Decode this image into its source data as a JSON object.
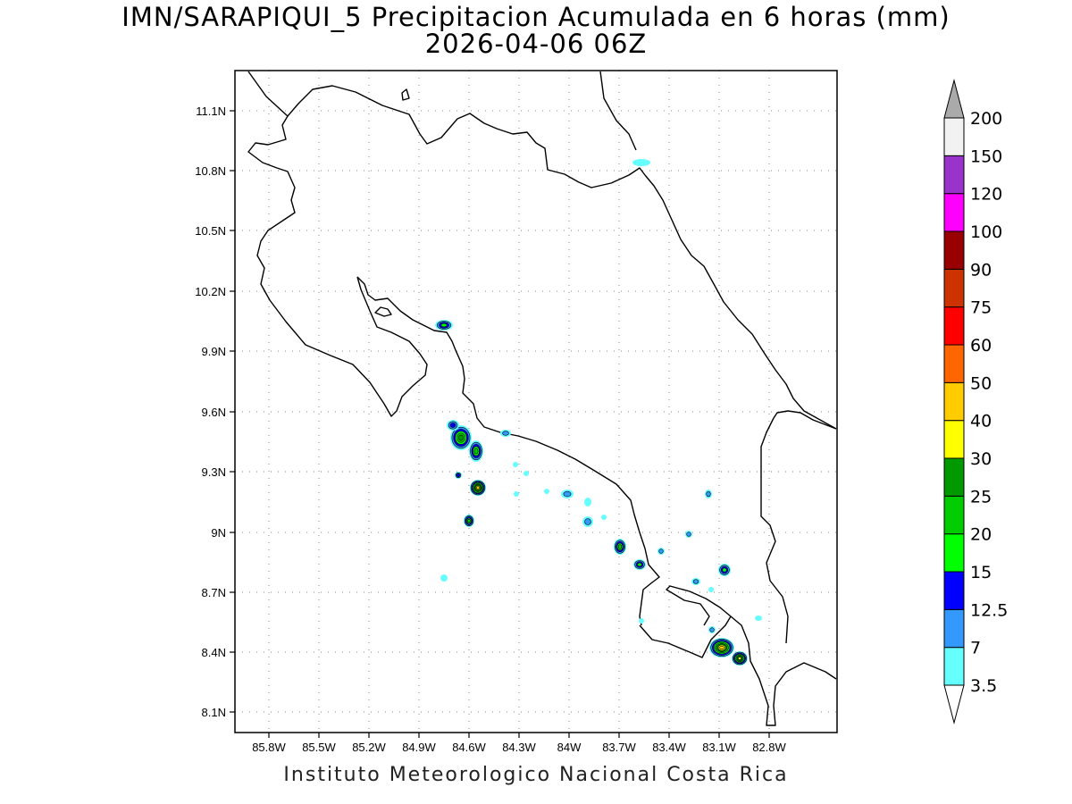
{
  "header": {
    "title": "IMN/SARAPIQUI_5 Precipitacion Acumulada en 6 horas (mm)",
    "subtitle": "2026-04-06 06Z"
  },
  "footer": {
    "credit": "Instituto Meteorologico Nacional Costa Rica"
  },
  "map": {
    "lat_labels": [
      "11.1N",
      "10.8N",
      "10.5N",
      "10.2N",
      "9.9N",
      "9.6N",
      "9.3N",
      "9N",
      "8.7N",
      "8.4N",
      "8.1N"
    ],
    "lon_labels": [
      "85.8W",
      "85.5W",
      "85.2W",
      "84.9W",
      "84.6W",
      "84.3W",
      "84W",
      "83.7W",
      "83.4W",
      "83.1W",
      "82.8W"
    ],
    "grid": "dotted"
  },
  "colorbar": {
    "labels": [
      "3.5",
      "7",
      "12.5",
      "15",
      "20",
      "25",
      "30",
      "40",
      "50",
      "60",
      "75",
      "90",
      "100",
      "120",
      "150",
      "200"
    ],
    "colors": [
      "#66ffff",
      "#3399ff",
      "#0000ff",
      "#00ff00",
      "#00cc00",
      "#009900",
      "#ffff00",
      "#ffcc00",
      "#ff6600",
      "#ff0000",
      "#cc3300",
      "#990000",
      "#ff00ff",
      "#9933cc",
      "#f2f2f2",
      "#aaaaaa"
    ],
    "units": "mm"
  }
}
